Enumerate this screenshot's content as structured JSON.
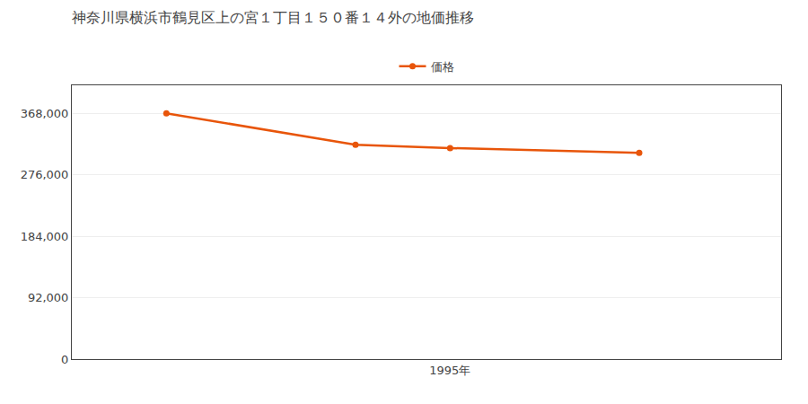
{
  "chart_data": {
    "type": "line",
    "title": "神奈川県横浜市鶴見区上の宮１丁目１５０番１４外の地価推移",
    "x": [
      1992,
      1994,
      1995,
      1997
    ],
    "series": [
      {
        "name": "価格",
        "color": "#e8550a",
        "values": [
          368000,
          321000,
          316000,
          309000
        ]
      }
    ],
    "xlim": [
      1991,
      1998.5
    ],
    "xticks": [
      {
        "value": 1995,
        "label": "1995年"
      }
    ],
    "ylim": [
      0,
      410000
    ],
    "yticks": [
      0,
      {
        "value": 92000,
        "label": "92,000"
      },
      {
        "value": 184000,
        "label": "184,000"
      },
      {
        "value": 276000,
        "label": "276,000"
      },
      {
        "value": 368000,
        "label": "368,000"
      }
    ],
    "grid": true,
    "legend": "top",
    "marker": "circle",
    "line_style": "solid"
  }
}
